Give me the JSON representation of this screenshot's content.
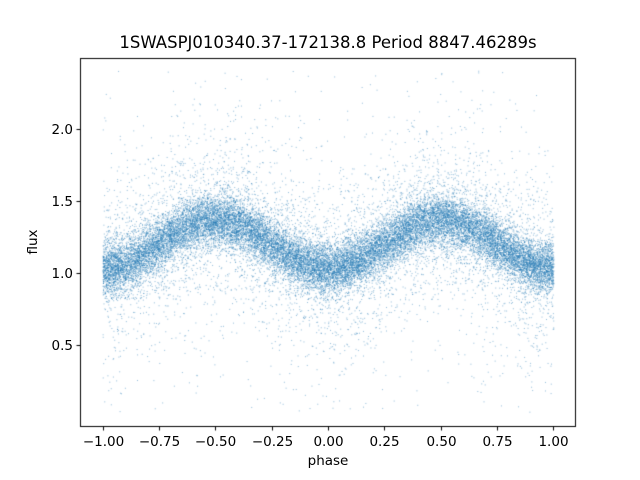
{
  "figure": {
    "background": "#ffffff"
  },
  "chart_data": {
    "type": "scatter",
    "title": "1SWASPJ010340.37-172138.8 Period 8847.46289s",
    "xlabel": "phase",
    "ylabel": "flux",
    "xlim": [
      -1.1,
      1.1
    ],
    "ylim": [
      -0.07,
      2.49
    ],
    "grid": false,
    "legend": null,
    "marker_color": "#1f77b4",
    "marker_alpha": 0.5,
    "marker_size_px": 1,
    "xticks": {
      "values": [
        -1.0,
        -0.75,
        -0.5,
        -0.25,
        0.0,
        0.25,
        0.5,
        0.75,
        1.0
      ],
      "labels": [
        "−1.00",
        "−0.75",
        "−0.50",
        "−0.25",
        "0.00",
        "0.25",
        "0.50",
        "0.75",
        "1.00"
      ]
    },
    "yticks": {
      "values": [
        0.5,
        1.0,
        1.5,
        2.0
      ],
      "labels": [
        "0.5",
        "1.0",
        "1.5",
        "2.0"
      ]
    },
    "model": {
      "description": "phase-folded light curve: flux = baseline - amplitude * cos(2*pi*phase) + mixture-gaussian noise, phase uniform in [x_min, x_max]",
      "baseline": 1.2,
      "amplitude": 0.17,
      "x_min": -1.0,
      "x_max": 1.0,
      "flux_at_minimum": 1.03,
      "flux_at_maximum": 1.37,
      "noise_components": [
        {
          "weight": 0.78,
          "sigma": 0.09
        },
        {
          "weight": 0.17,
          "sigma": 0.28
        },
        {
          "weight": 0.05,
          "sigma": 0.6
        }
      ],
      "y_clip": [
        0.03,
        2.42
      ],
      "n_points": 28000,
      "seed": 12345
    }
  }
}
